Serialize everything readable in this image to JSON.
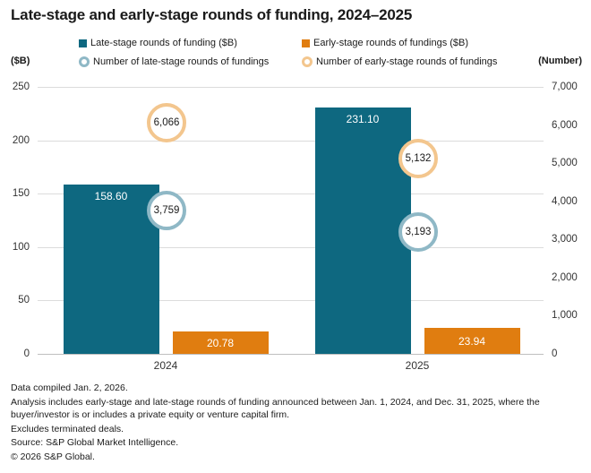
{
  "title": "Late-stage and early-stage rounds of funding, 2024–2025",
  "legend": {
    "items": [
      {
        "label": "Late-stage rounds of funding ($B)",
        "marker": "square",
        "color": "#0E6880"
      },
      {
        "label": "Early-stage rounds of fundings ($B)",
        "marker": "square",
        "color": "#E07D10"
      },
      {
        "label": "Number of late-stage rounds of fundings",
        "marker": "ring",
        "color": "#8FB8C6"
      },
      {
        "label": "Number of early-stage rounds of fundings",
        "marker": "ring",
        "color": "#F3C68E"
      }
    ]
  },
  "chart_data": {
    "type": "bar",
    "categories": [
      "2024",
      "2025"
    ],
    "series": [
      {
        "name": "Late-stage rounds of funding ($B)",
        "kind": "bar",
        "stage": "late-stage",
        "axis": "left",
        "color": "#0E6880",
        "values": [
          158.6,
          231.1
        ],
        "labels": [
          "158.60",
          "231.10"
        ]
      },
      {
        "name": "Early-stage rounds of fundings ($B)",
        "kind": "bar",
        "stage": "early-stage",
        "axis": "left",
        "color": "#E07D10",
        "values": [
          20.78,
          23.94
        ],
        "labels": [
          "20.78",
          "23.94"
        ]
      },
      {
        "name": "Number of late-stage rounds of fundings",
        "kind": "ring",
        "stage": "late-stage",
        "axis": "right",
        "color": "#8FB8C6",
        "values": [
          3759,
          3193
        ],
        "labels": [
          "3,759",
          "3,193"
        ]
      },
      {
        "name": "Number of early-stage rounds of fundings",
        "kind": "ring",
        "stage": "early-stage",
        "axis": "right",
        "color": "#F3C68E",
        "values": [
          6066,
          5132
        ],
        "labels": [
          "6,066",
          "5,132"
        ]
      }
    ],
    "left_axis": {
      "title": "($B)",
      "min": 0,
      "max": 250,
      "ticks": [
        {
          "value": 250,
          "label": "250"
        },
        {
          "value": 200,
          "label": "200"
        },
        {
          "value": 150,
          "label": "150"
        },
        {
          "value": 100,
          "label": "100"
        },
        {
          "value": 50,
          "label": "50"
        },
        {
          "value": 0,
          "label": "0"
        }
      ]
    },
    "right_axis": {
      "title": "(Number)",
      "min": 0,
      "max": 7000,
      "ticks": [
        {
          "value": 7000,
          "label": "7,000"
        },
        {
          "value": 6000,
          "label": "6,000"
        },
        {
          "value": 5000,
          "label": "5,000"
        },
        {
          "value": 4000,
          "label": "4,000"
        },
        {
          "value": 3000,
          "label": "3,000"
        },
        {
          "value": 2000,
          "label": "2,000"
        },
        {
          "value": 1000,
          "label": "1,000"
        },
        {
          "value": 0,
          "label": "0"
        }
      ]
    },
    "grid": "horizontal",
    "legend_position": "top"
  },
  "footer": {
    "lines": [
      "Data compiled Jan. 2, 2026.",
      "Analysis includes early-stage and late-stage rounds of funding announced between Jan. 1, 2024, and Dec. 31, 2025, where the buyer/investor is or includes a private equity or venture capital firm.",
      "Excludes terminated deals.",
      "Source: S&P Global Market Intelligence.",
      "© 2026 S&P Global."
    ]
  }
}
